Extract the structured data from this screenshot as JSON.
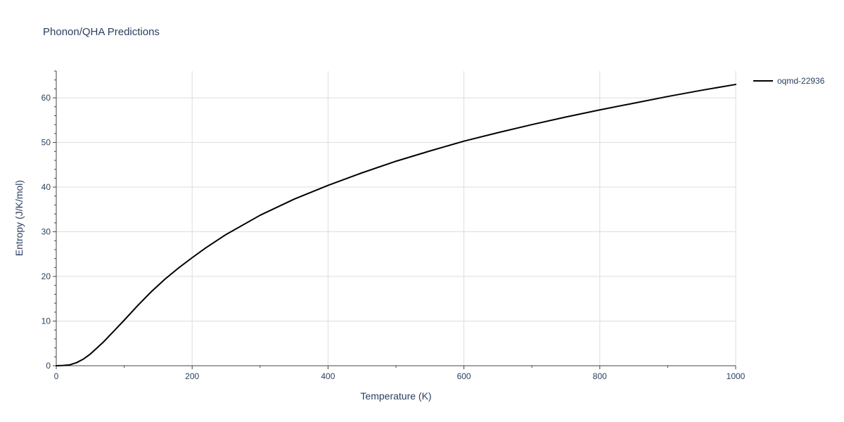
{
  "chart_data": {
    "type": "line",
    "title": "Phonon/QHA Predictions",
    "xlabel": "Temperature (K)",
    "ylabel": "Entropy (J/K/mol)",
    "xlim": [
      0,
      1000
    ],
    "ylim": [
      0,
      66
    ],
    "x_ticks": [
      0,
      200,
      400,
      600,
      800,
      1000
    ],
    "y_ticks": [
      0,
      10,
      20,
      30,
      40,
      50,
      60
    ],
    "grid": true,
    "legend_position": "top-right",
    "colors": {
      "text": "#2a3f5f",
      "grid": "#dddddd",
      "axis": "#444444",
      "series": "#000000"
    },
    "series": [
      {
        "name": "oqmd-22936",
        "x": [
          0,
          10,
          20,
          30,
          40,
          50,
          60,
          70,
          80,
          90,
          100,
          120,
          140,
          160,
          180,
          200,
          220,
          250,
          300,
          350,
          400,
          450,
          500,
          550,
          600,
          650,
          700,
          750,
          800,
          850,
          900,
          950,
          1000
        ],
        "y": [
          0,
          0.05,
          0.2,
          0.7,
          1.5,
          2.6,
          4.0,
          5.4,
          7.0,
          8.6,
          10.2,
          13.5,
          16.6,
          19.4,
          21.9,
          24.2,
          26.4,
          29.4,
          33.7,
          37.3,
          40.4,
          43.2,
          45.8,
          48.1,
          50.3,
          52.2,
          54.0,
          55.7,
          57.3,
          58.8,
          60.3,
          61.7,
          63.0
        ]
      }
    ]
  }
}
